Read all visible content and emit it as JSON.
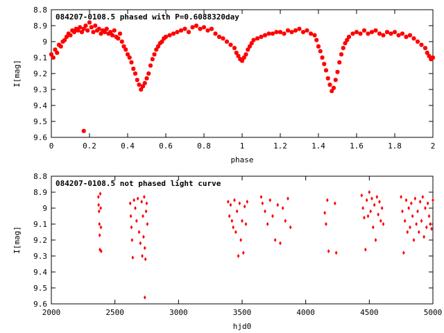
{
  "chart_data": [
    {
      "type": "scatter",
      "title": "084207-0108.5 phased with P=0.6088320day",
      "xlabel": "phase",
      "ylabel": "I[mag]",
      "xlim": [
        0,
        2
      ],
      "ylim": [
        8.8,
        9.6
      ],
      "y_inverted": true,
      "xticks": [
        "0",
        "0.2",
        "0.4",
        "0.6",
        "0.8",
        "1",
        "1.2",
        "1.4",
        "1.6",
        "1.8",
        "2"
      ],
      "yticks": [
        "8.8",
        "8.9",
        "9",
        "9.1",
        "9.2",
        "9.3",
        "9.4",
        "9.5",
        "9.6"
      ],
      "marker": "star",
      "color": "#ff0000",
      "series": [
        {
          "points": [
            [
              0.0,
              9.08
            ],
            [
              0.01,
              9.1
            ],
            [
              0.02,
              9.05
            ],
            [
              0.03,
              9.07
            ],
            [
              0.04,
              9.02
            ],
            [
              0.05,
              9.03
            ],
            [
              0.06,
              9.0
            ],
            [
              0.07,
              8.99
            ],
            [
              0.08,
              8.97
            ],
            [
              0.09,
              8.95
            ],
            [
              0.1,
              8.96
            ],
            [
              0.11,
              8.93
            ],
            [
              0.12,
              8.94
            ],
            [
              0.13,
              8.92
            ],
            [
              0.14,
              8.93
            ],
            [
              0.15,
              8.91
            ],
            [
              0.16,
              8.94
            ],
            [
              0.17,
              8.92
            ],
            [
              0.18,
              8.9
            ],
            [
              0.19,
              8.93
            ],
            [
              0.2,
              8.88
            ],
            [
              0.21,
              8.91
            ],
            [
              0.22,
              8.94
            ],
            [
              0.23,
              8.9
            ],
            [
              0.24,
              8.93
            ],
            [
              0.25,
              8.92
            ],
            [
              0.26,
              8.95
            ],
            [
              0.27,
              8.93
            ],
            [
              0.28,
              8.94
            ],
            [
              0.29,
              8.92
            ],
            [
              0.3,
              8.95
            ],
            [
              0.31,
              8.94
            ],
            [
              0.32,
              8.96
            ],
            [
              0.33,
              8.93
            ],
            [
              0.34,
              8.97
            ],
            [
              0.35,
              8.98
            ],
            [
              0.36,
              8.95
            ],
            [
              0.37,
              9.0
            ],
            [
              0.38,
              9.03
            ],
            [
              0.39,
              9.05
            ],
            [
              0.4,
              9.08
            ],
            [
              0.41,
              9.1
            ],
            [
              0.42,
              9.13
            ],
            [
              0.43,
              9.17
            ],
            [
              0.44,
              9.2
            ],
            [
              0.45,
              9.24
            ],
            [
              0.46,
              9.27
            ],
            [
              0.47,
              9.3
            ],
            [
              0.48,
              9.28
            ],
            [
              0.49,
              9.26
            ],
            [
              0.5,
              9.23
            ],
            [
              0.51,
              9.2
            ],
            [
              0.52,
              9.15
            ],
            [
              0.53,
              9.11
            ],
            [
              0.54,
              9.08
            ],
            [
              0.55,
              9.05
            ],
            [
              0.56,
              9.03
            ],
            [
              0.57,
              9.01
            ],
            [
              0.58,
              9.0
            ],
            [
              0.59,
              8.98
            ],
            [
              0.6,
              8.97
            ],
            [
              0.62,
              8.96
            ],
            [
              0.64,
              8.95
            ],
            [
              0.66,
              8.94
            ],
            [
              0.68,
              8.93
            ],
            [
              0.7,
              8.92
            ],
            [
              0.72,
              8.94
            ],
            [
              0.74,
              8.91
            ],
            [
              0.76,
              8.9
            ],
            [
              0.78,
              8.92
            ],
            [
              0.8,
              8.91
            ],
            [
              0.82,
              8.93
            ],
            [
              0.84,
              8.92
            ],
            [
              0.86,
              8.95
            ],
            [
              0.88,
              8.97
            ],
            [
              0.9,
              8.98
            ],
            [
              0.92,
              9.0
            ],
            [
              0.94,
              9.02
            ],
            [
              0.96,
              9.04
            ],
            [
              0.97,
              9.07
            ],
            [
              0.98,
              9.09
            ],
            [
              0.99,
              9.11
            ],
            [
              1.0,
              9.12
            ],
            [
              1.01,
              9.1
            ],
            [
              1.02,
              9.08
            ],
            [
              1.03,
              9.05
            ],
            [
              1.04,
              9.03
            ],
            [
              1.05,
              9.01
            ],
            [
              1.06,
              8.99
            ],
            [
              1.08,
              8.98
            ],
            [
              1.1,
              8.97
            ],
            [
              1.12,
              8.96
            ],
            [
              1.14,
              8.95
            ],
            [
              1.16,
              8.95
            ],
            [
              1.18,
              8.94
            ],
            [
              1.2,
              8.94
            ],
            [
              1.22,
              8.95
            ],
            [
              1.24,
              8.93
            ],
            [
              1.26,
              8.94
            ],
            [
              1.28,
              8.93
            ],
            [
              1.3,
              8.92
            ],
            [
              1.32,
              8.94
            ],
            [
              1.34,
              8.93
            ],
            [
              1.36,
              8.95
            ],
            [
              1.38,
              8.96
            ],
            [
              1.39,
              8.99
            ],
            [
              1.4,
              9.03
            ],
            [
              1.41,
              9.06
            ],
            [
              1.42,
              9.1
            ],
            [
              1.43,
              9.14
            ],
            [
              1.44,
              9.18
            ],
            [
              1.45,
              9.23
            ],
            [
              1.46,
              9.27
            ],
            [
              1.47,
              9.31
            ],
            [
              1.48,
              9.29
            ],
            [
              1.49,
              9.24
            ],
            [
              1.5,
              9.19
            ],
            [
              1.51,
              9.13
            ],
            [
              1.52,
              9.08
            ],
            [
              1.53,
              9.04
            ],
            [
              1.54,
              9.01
            ],
            [
              1.55,
              8.99
            ],
            [
              1.56,
              8.97
            ],
            [
              1.58,
              8.95
            ],
            [
              1.6,
              8.94
            ],
            [
              1.62,
              8.95
            ],
            [
              1.64,
              8.93
            ],
            [
              1.66,
              8.95
            ],
            [
              1.68,
              8.94
            ],
            [
              1.7,
              8.93
            ],
            [
              1.72,
              8.95
            ],
            [
              1.74,
              8.96
            ],
            [
              1.76,
              8.94
            ],
            [
              1.78,
              8.95
            ],
            [
              1.8,
              8.94
            ],
            [
              1.82,
              8.96
            ],
            [
              1.84,
              8.95
            ],
            [
              1.86,
              8.97
            ],
            [
              1.88,
              8.96
            ],
            [
              1.9,
              8.98
            ],
            [
              1.92,
              9.0
            ],
            [
              1.94,
              9.02
            ],
            [
              1.96,
              9.04
            ],
            [
              1.97,
              9.07
            ],
            [
              1.98,
              9.09
            ],
            [
              1.99,
              9.11
            ],
            [
              2.0,
              9.1
            ],
            [
              0.17,
              9.56
            ]
          ]
        }
      ]
    },
    {
      "type": "scatter",
      "title": "084207-0108.5 not phased light curve",
      "xlabel": "hjd0",
      "ylabel": "I[mag]",
      "xlim": [
        2000,
        5000
      ],
      "ylim": [
        8.8,
        9.6
      ],
      "y_inverted": true,
      "xticks": [
        "2000",
        "2500",
        "3000",
        "3500",
        "4000",
        "4500",
        "5000"
      ],
      "yticks": [
        "8.8",
        "8.9",
        "9",
        "9.1",
        "9.2",
        "9.3",
        "9.4",
        "9.5",
        "9.6"
      ],
      "marker": "diamond",
      "color": "#ff0000",
      "series": [
        {
          "points": [
            [
              2370,
              8.93
            ],
            [
              2372,
              8.98
            ],
            [
              2375,
              9.02
            ],
            [
              2378,
              9.1
            ],
            [
              2380,
              9.17
            ],
            [
              2382,
              9.26
            ],
            [
              2385,
              8.91
            ],
            [
              2388,
              9.0
            ],
            [
              2390,
              9.12
            ],
            [
              2392,
              9.27
            ],
            [
              2620,
              8.97
            ],
            [
              2625,
              9.05
            ],
            [
              2630,
              9.12
            ],
            [
              2635,
              9.2
            ],
            [
              2640,
              9.31
            ],
            [
              2650,
              8.95
            ],
            [
              2660,
              9.0
            ],
            [
              2670,
              9.08
            ],
            [
              2680,
              8.94
            ],
            [
              2690,
              9.15
            ],
            [
              2700,
              9.22
            ],
            [
              2710,
              8.96
            ],
            [
              2715,
              9.3
            ],
            [
              2720,
              9.05
            ],
            [
              2725,
              9.18
            ],
            [
              2730,
              8.93
            ],
            [
              2735,
              9.25
            ],
            [
              2740,
              9.32
            ],
            [
              2745,
              9.02
            ],
            [
              2750,
              8.97
            ],
            [
              2755,
              9.1
            ],
            [
              2735,
              9.56
            ],
            [
              3390,
              8.96
            ],
            [
              3400,
              9.05
            ],
            [
              3410,
              8.98
            ],
            [
              3420,
              9.08
            ],
            [
              3430,
              9.12
            ],
            [
              3440,
              8.95
            ],
            [
              3450,
              9.15
            ],
            [
              3460,
              9.02
            ],
            [
              3470,
              9.3
            ],
            [
              3480,
              8.97
            ],
            [
              3490,
              9.2
            ],
            [
              3500,
              9.08
            ],
            [
              3510,
              9.28
            ],
            [
              3520,
              8.99
            ],
            [
              3530,
              9.1
            ],
            [
              3540,
              8.96
            ],
            [
              3650,
              8.93
            ],
            [
              3660,
              8.97
            ],
            [
              3680,
              9.02
            ],
            [
              3700,
              9.1
            ],
            [
              3720,
              8.95
            ],
            [
              3740,
              9.05
            ],
            [
              3760,
              9.2
            ],
            [
              3780,
              8.98
            ],
            [
              3800,
              9.22
            ],
            [
              3820,
              9.0
            ],
            [
              3840,
              9.08
            ],
            [
              3860,
              8.94
            ],
            [
              3880,
              9.12
            ],
            [
              4150,
              9.03
            ],
            [
              4160,
              9.1
            ],
            [
              4170,
              8.95
            ],
            [
              4180,
              9.27
            ],
            [
              4230,
              8.97
            ],
            [
              4240,
              9.28
            ],
            [
              4440,
              8.92
            ],
            [
              4450,
              9.0
            ],
            [
              4460,
              9.06
            ],
            [
              4470,
              9.26
            ],
            [
              4480,
              8.95
            ],
            [
              4490,
              9.05
            ],
            [
              4500,
              8.9
            ],
            [
              4510,
              9.02
            ],
            [
              4520,
              8.94
            ],
            [
              4530,
              9.12
            ],
            [
              4540,
              8.98
            ],
            [
              4550,
              9.2
            ],
            [
              4560,
              8.93
            ],
            [
              4570,
              9.04
            ],
            [
              4580,
              8.96
            ],
            [
              4590,
              9.08
            ],
            [
              4600,
              9.0
            ],
            [
              4610,
              9.1
            ],
            [
              4750,
              8.93
            ],
            [
              4760,
              9.02
            ],
            [
              4770,
              9.28
            ],
            [
              4780,
              9.08
            ],
            [
              4790,
              8.95
            ],
            [
              4800,
              9.15
            ],
            [
              4810,
              9.0
            ],
            [
              4820,
              9.12
            ],
            [
              4830,
              8.97
            ],
            [
              4840,
              9.05
            ],
            [
              4850,
              9.2
            ],
            [
              4860,
              8.94
            ],
            [
              4870,
              9.1
            ],
            [
              4880,
              9.02
            ],
            [
              4890,
              9.15
            ],
            [
              4900,
              8.96
            ],
            [
              4910,
              9.08
            ],
            [
              4920,
              8.93
            ],
            [
              4930,
              9.18
            ],
            [
              4940,
              9.0
            ],
            [
              4950,
              9.12
            ],
            [
              4960,
              8.97
            ],
            [
              4970,
              9.05
            ],
            [
              4980,
              9.1
            ],
            [
              4990,
              9.13
            ],
            [
              5000,
              8.95
            ]
          ]
        }
      ]
    }
  ]
}
